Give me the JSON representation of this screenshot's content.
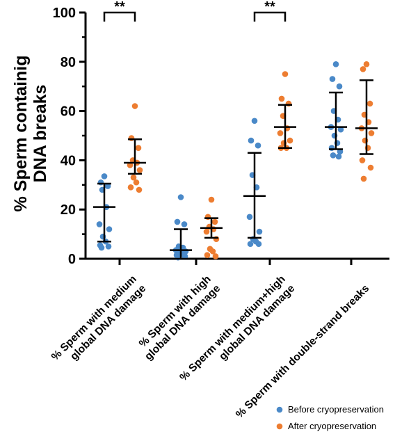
{
  "chart_data": {
    "type": "scatter",
    "ylabel_lines": [
      "% Sperm containig",
      "DNA breaks"
    ],
    "ylim": [
      0,
      100
    ],
    "yticks": [
      "0",
      "20",
      "40",
      "60",
      "80",
      "100"
    ],
    "categories": [
      {
        "lines": [
          "% Sperm with medium",
          "global DNA damage"
        ]
      },
      {
        "lines": [
          "% Sperm with high",
          "global DNA damage"
        ]
      },
      {
        "lines": [
          "% Sperm with medium+high",
          "global DNA damage"
        ]
      },
      {
        "lines": [
          "% Sperm with double-strand breaks"
        ]
      }
    ],
    "series": [
      {
        "name": "Before cryopreservation",
        "color": "#4A89C8",
        "points": [
          [
            33.5,
            31,
            29.5,
            28,
            21,
            14,
            12,
            9,
            7,
            5.5,
            5,
            4.5
          ],
          [
            25,
            15,
            14,
            5,
            4.5,
            3.5,
            3,
            2.5,
            2,
            1.5,
            1,
            0.5
          ],
          [
            56,
            48,
            46,
            34,
            29,
            17,
            11,
            8,
            7,
            6,
            6
          ],
          [
            79,
            73,
            70,
            60,
            56.5,
            53.5,
            52.5,
            50,
            47,
            45,
            43.5,
            42,
            41.5
          ]
        ],
        "mean": [
          21,
          3.5,
          25.5,
          53.5
        ],
        "sd_low": [
          7,
          0,
          8.5,
          44.5
        ],
        "sd_high": [
          30.5,
          12,
          43,
          67.5
        ]
      },
      {
        "name": "After cryopreservation",
        "color": "#ED7D31",
        "points": [
          [
            62,
            49,
            45,
            40,
            39,
            38,
            36,
            33,
            31,
            29,
            28
          ],
          [
            24,
            17,
            15,
            13,
            12,
            11,
            8,
            4,
            3,
            1.5,
            1
          ],
          [
            75,
            65,
            63,
            58,
            53,
            51,
            48,
            47,
            45,
            45
          ],
          [
            79,
            77,
            63,
            58.5,
            55.5,
            53,
            51,
            48,
            45,
            40,
            37,
            32.5
          ]
        ],
        "mean": [
          39,
          12.5,
          53.5,
          53
        ],
        "sd_low": [
          34.5,
          8.5,
          45,
          42.5
        ],
        "sd_high": [
          48.5,
          16.5,
          62.5,
          72.5
        ]
      }
    ],
    "significance": [
      {
        "category": 0,
        "label": "**"
      },
      {
        "category": 2,
        "label": "**"
      }
    ],
    "legend_position": "bottom-right"
  }
}
